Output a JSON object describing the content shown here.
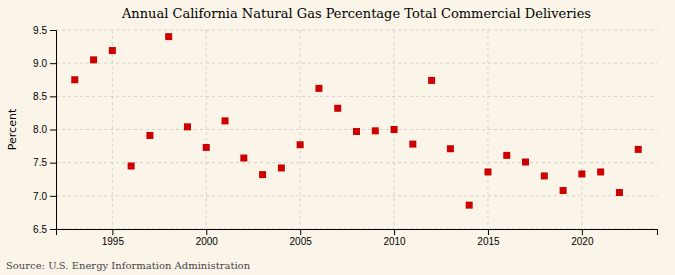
{
  "chart_data": {
    "type": "scatter",
    "title": "Annual California Natural Gas Percentage Total Commercial Deliveries",
    "ylabel": "Percent",
    "annotations": [
      "Source: U.S. Energy Information Administration"
    ],
    "x": [
      1993,
      1994,
      1995,
      1996,
      1997,
      1998,
      1999,
      2000,
      2001,
      2002,
      2003,
      2004,
      2005,
      2006,
      2007,
      2008,
      2009,
      2010,
      2011,
      2012,
      2013,
      2014,
      2015,
      2016,
      2017,
      2018,
      2019,
      2020,
      2021,
      2022,
      2023
    ],
    "values": [
      8.75,
      9.05,
      9.19,
      7.45,
      7.91,
      9.4,
      8.04,
      7.73,
      8.13,
      7.57,
      7.32,
      7.42,
      7.77,
      8.62,
      8.32,
      7.97,
      7.98,
      8.0,
      7.78,
      8.74,
      7.71,
      6.86,
      7.36,
      7.61,
      7.51,
      7.3,
      7.08,
      7.33,
      7.36,
      7.05,
      7.7
    ],
    "xlim": [
      1992,
      2024
    ],
    "ylim": [
      6.5,
      9.5
    ],
    "xticks": [
      1995,
      2000,
      2005,
      2010,
      2015,
      2020
    ],
    "yticks": [
      6.5,
      {
        "value": 7.0,
        "label": "7.0"
      },
      7.5,
      {
        "value": 8.0,
        "label": "8.0"
      },
      8.5,
      {
        "value": 9.0,
        "label": "9.0"
      },
      9.5
    ],
    "color": "#cc0000",
    "marker": "square",
    "grid": true
  }
}
